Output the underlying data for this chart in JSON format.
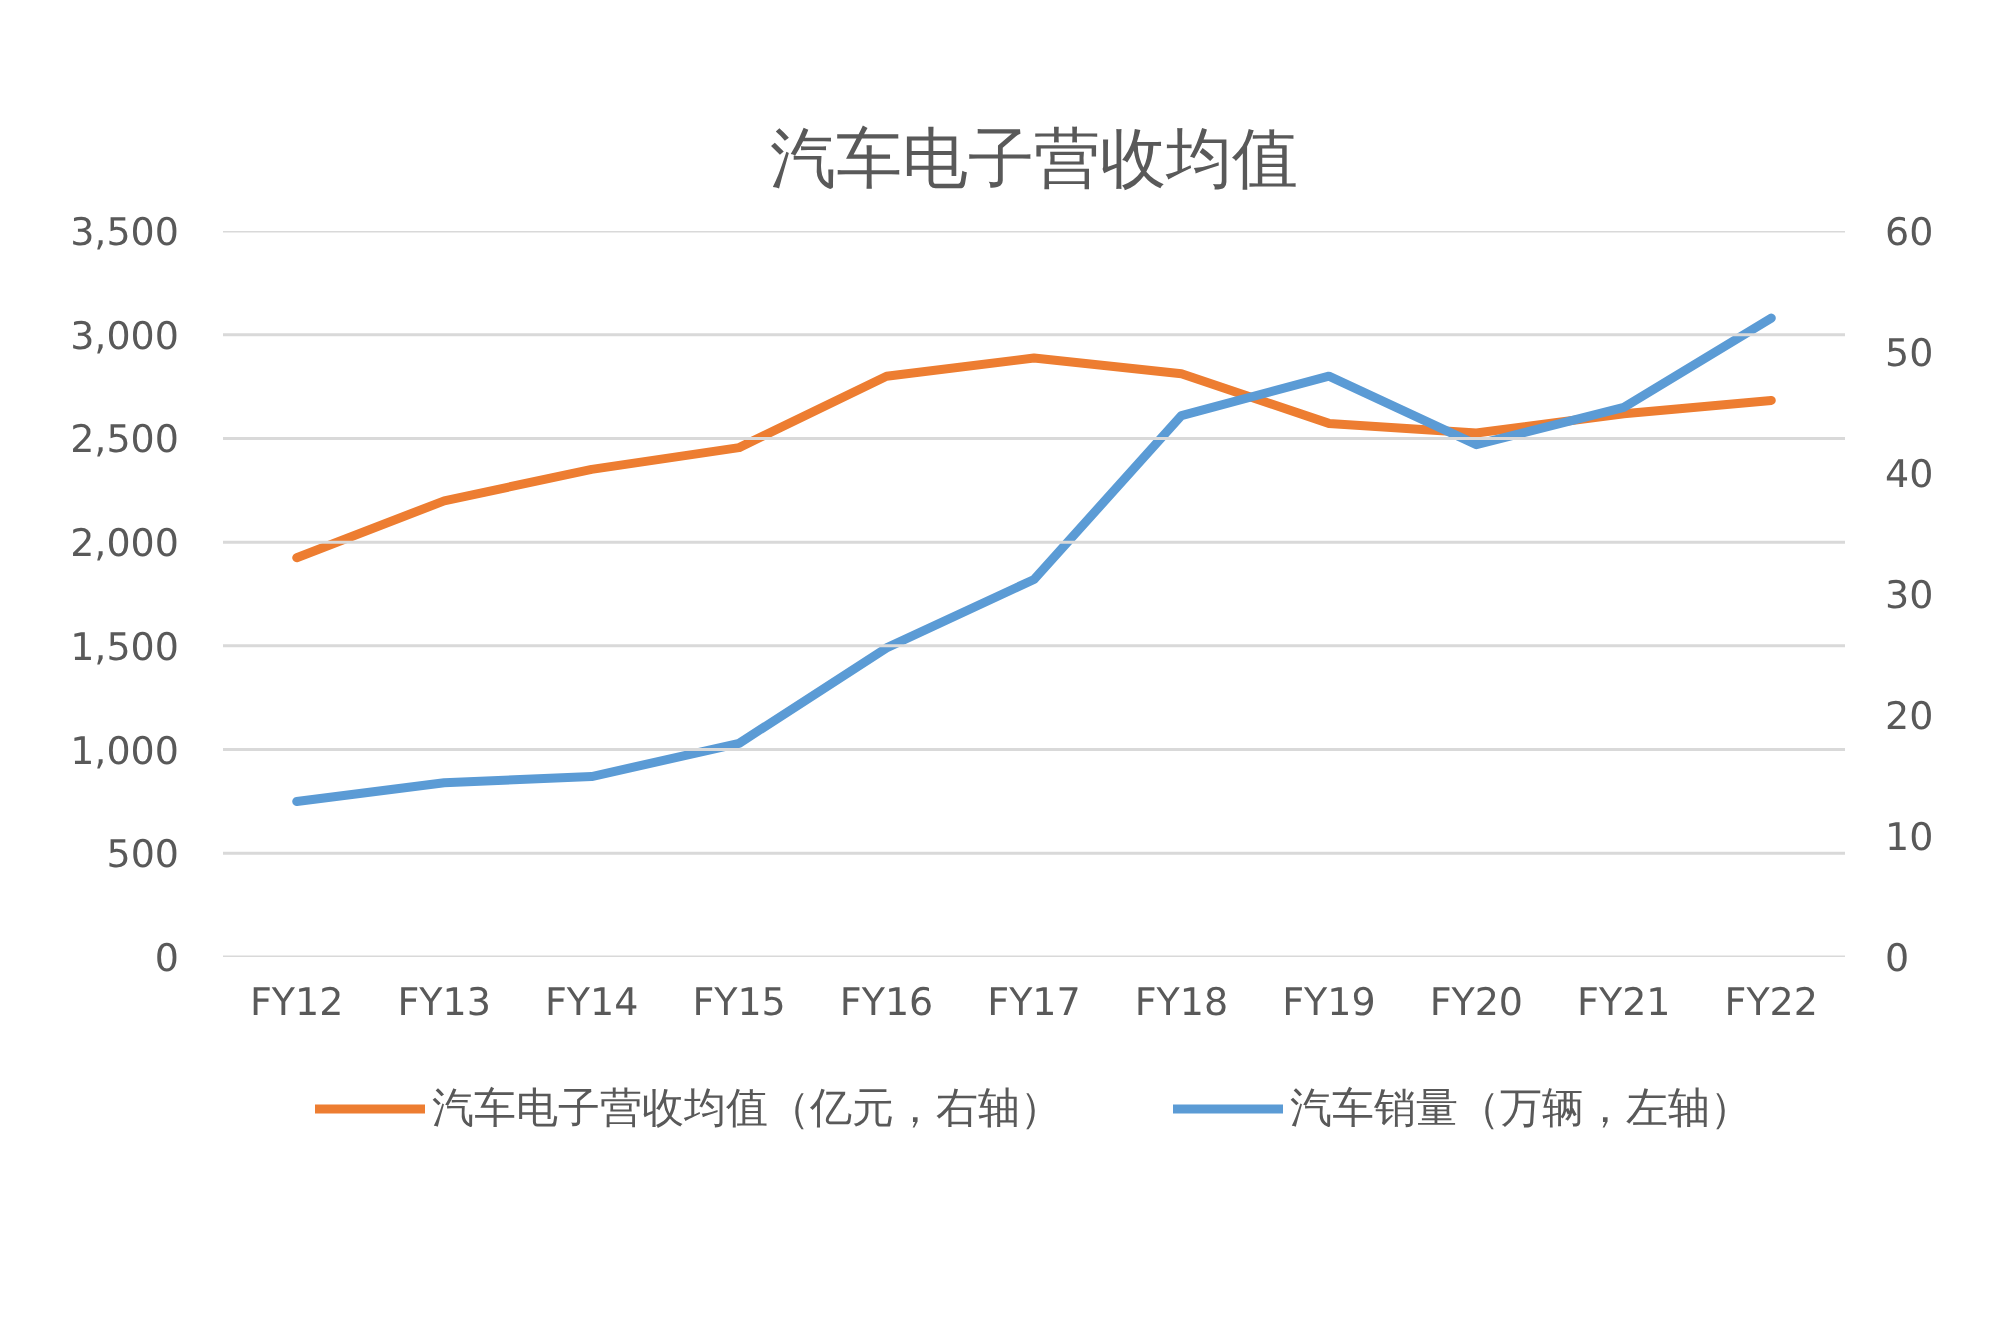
{
  "chart_data": {
    "type": "line",
    "title": "汽车电子营收均值",
    "categories": [
      "FY12",
      "FY13",
      "FY14",
      "FY15",
      "FY16",
      "FY17",
      "FY18",
      "FY19",
      "FY20",
      "FY21",
      "FY22"
    ],
    "series": [
      {
        "name": "汽车电子营收均值（亿元，右轴）",
        "color": "#ed7d31",
        "axis": "y2",
        "values": [
          33,
          37.7,
          40.3,
          42.1,
          48,
          49.5,
          48.2,
          44.1,
          43.3,
          44.9,
          46
        ]
      },
      {
        "name": "汽车销量（万辆，左轴）",
        "color": "#5b9bd5",
        "values": [
          750,
          840,
          870,
          1030,
          1490,
          1820,
          2610,
          2800,
          2470,
          2650,
          3080
        ]
      }
    ],
    "ylim": [
      0,
      3500
    ],
    "yticks": [
      0,
      500,
      {
        "value": 1000,
        "label": "1,000"
      },
      {
        "value": 1500,
        "label": "1,500"
      },
      {
        "value": 2000,
        "label": "2,000"
      },
      {
        "value": 2500,
        "label": "2,500"
      },
      {
        "value": 3000,
        "label": "3,000"
      },
      {
        "value": 3500,
        "label": "3,500"
      }
    ],
    "y2lim": [
      0,
      60
    ],
    "y2ticks": [
      0,
      10,
      20,
      30,
      40,
      50,
      60
    ],
    "grid": "y",
    "legend": "bottom",
    "line_style": "solid"
  }
}
